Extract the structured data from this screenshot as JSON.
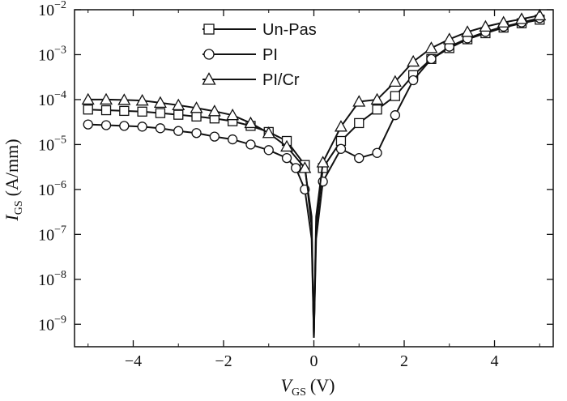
{
  "chart_data": {
    "type": "line",
    "x_label": {
      "symbol": "V",
      "sub": "GS",
      "unit": "(V)"
    },
    "y_label": {
      "symbol": "I",
      "sub": "GS",
      "unit": "(A/mm)"
    },
    "xlim": [
      -5.3,
      5.3
    ],
    "ylim_exp": [
      -9.5,
      -2
    ],
    "y_scale": "log",
    "x_ticks": [
      {
        "v": -4,
        "label": "−4"
      },
      {
        "v": -2,
        "label": "−2"
      },
      {
        "v": 0,
        "label": "0"
      },
      {
        "v": 2,
        "label": "2"
      },
      {
        "v": 4,
        "label": "4"
      }
    ],
    "y_ticks": [
      {
        "exp": -2,
        "base": "10",
        "sup": "−2"
      },
      {
        "exp": -3,
        "base": "10",
        "sup": "−3"
      },
      {
        "exp": -4,
        "base": "10",
        "sup": "−4"
      },
      {
        "exp": -5,
        "base": "10",
        "sup": "−5"
      },
      {
        "exp": -6,
        "base": "10",
        "sup": "−6"
      },
      {
        "exp": -7,
        "base": "10",
        "sup": "−7"
      },
      {
        "exp": -8,
        "base": "10",
        "sup": "−8"
      },
      {
        "exp": -9,
        "base": "10",
        "sup": "−9"
      }
    ],
    "legend_position": "top-center",
    "series": [
      {
        "name": "Un-Pas",
        "marker": "square",
        "color": "#111111",
        "points": [
          [
            -5,
            6e-05
          ],
          [
            -4.6,
            5.8e-05
          ],
          [
            -4.2,
            5.6e-05
          ],
          [
            -3.8,
            5.4e-05
          ],
          [
            -3.4,
            5e-05
          ],
          [
            -3.0,
            4.6e-05
          ],
          [
            -2.6,
            4.2e-05
          ],
          [
            -2.2,
            3.8e-05
          ],
          [
            -1.8,
            3.3e-05
          ],
          [
            -1.4,
            2.6e-05
          ],
          [
            -1.0,
            1.9e-05
          ],
          [
            -0.6,
            1.2e-05
          ],
          [
            -0.2,
            3.5e-06
          ],
          [
            -0.05,
            1.5e-07
          ],
          [
            0,
            5e-10
          ],
          [
            0.05,
            1.5e-07
          ],
          [
            0.2,
            3e-06
          ],
          [
            0.6,
            1.2e-05
          ],
          [
            1.0,
            3e-05
          ],
          [
            1.4,
            6e-05
          ],
          [
            1.8,
            0.00012
          ],
          [
            2.2,
            0.00035
          ],
          [
            2.6,
            0.0008
          ],
          [
            3.0,
            0.0014
          ],
          [
            3.4,
            0.0022
          ],
          [
            3.8,
            0.003
          ],
          [
            4.2,
            0.004
          ],
          [
            4.6,
            0.005
          ],
          [
            5.0,
            0.006
          ]
        ]
      },
      {
        "name": "PI",
        "marker": "circle",
        "color": "#111111",
        "points": [
          [
            -5,
            2.8e-05
          ],
          [
            -4.6,
            2.7e-05
          ],
          [
            -4.2,
            2.6e-05
          ],
          [
            -3.8,
            2.5e-05
          ],
          [
            -3.4,
            2.3e-05
          ],
          [
            -3.0,
            2e-05
          ],
          [
            -2.6,
            1.8e-05
          ],
          [
            -2.2,
            1.5e-05
          ],
          [
            -1.8,
            1.3e-05
          ],
          [
            -1.4,
            1e-05
          ],
          [
            -1.0,
            7.5e-06
          ],
          [
            -0.6,
            5e-06
          ],
          [
            -0.4,
            3e-06
          ],
          [
            -0.2,
            1e-06
          ],
          [
            -0.05,
            8e-08
          ],
          [
            0,
            5e-10
          ],
          [
            0.05,
            8e-08
          ],
          [
            0.2,
            1.5e-06
          ],
          [
            0.6,
            8e-06
          ],
          [
            1.0,
            5e-06
          ],
          [
            1.4,
            6.5e-06
          ],
          [
            1.8,
            4.5e-05
          ],
          [
            2.2,
            0.00027
          ],
          [
            2.6,
            0.0008
          ],
          [
            3.0,
            0.0015
          ],
          [
            3.4,
            0.0023
          ],
          [
            3.8,
            0.0032
          ],
          [
            4.2,
            0.0042
          ],
          [
            4.6,
            0.0052
          ],
          [
            5.0,
            0.0065
          ]
        ]
      },
      {
        "name": "PI/Cr",
        "marker": "triangle",
        "color": "#111111",
        "points": [
          [
            -5,
            0.0001
          ],
          [
            -4.6,
            0.0001
          ],
          [
            -4.2,
            9.8e-05
          ],
          [
            -3.8,
            9.5e-05
          ],
          [
            -3.4,
            8.5e-05
          ],
          [
            -3.0,
            7.5e-05
          ],
          [
            -2.6,
            6.5e-05
          ],
          [
            -2.2,
            5.5e-05
          ],
          [
            -1.8,
            4.5e-05
          ],
          [
            -1.4,
            3e-05
          ],
          [
            -1.0,
            1.8e-05
          ],
          [
            -0.6,
            9e-06
          ],
          [
            -0.2,
            3e-06
          ],
          [
            -0.05,
            2.5e-07
          ],
          [
            0,
            5e-10
          ],
          [
            0.05,
            2.5e-07
          ],
          [
            0.2,
            4e-06
          ],
          [
            0.6,
            2.5e-05
          ],
          [
            1.0,
            9e-05
          ],
          [
            1.4,
            0.0001
          ],
          [
            1.8,
            0.00025
          ],
          [
            2.2,
            0.0007
          ],
          [
            2.6,
            0.0014
          ],
          [
            3.0,
            0.0022
          ],
          [
            3.4,
            0.0032
          ],
          [
            3.8,
            0.0042
          ],
          [
            4.2,
            0.0052
          ],
          [
            4.6,
            0.0062
          ],
          [
            5.0,
            0.0075
          ]
        ]
      }
    ]
  }
}
